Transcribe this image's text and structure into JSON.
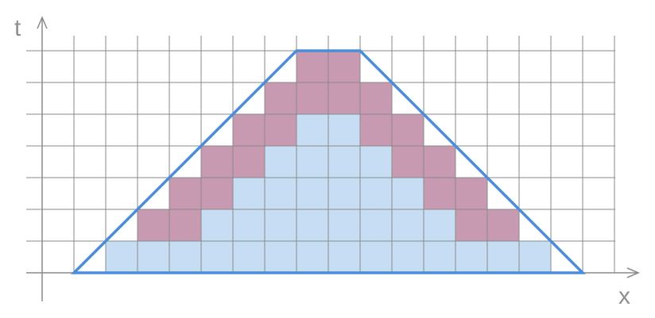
{
  "axes": {
    "x_label": "x",
    "y_label": "t"
  },
  "colors": {
    "background": "#ffffff",
    "grid": "#8a8a8a",
    "axis": "#8a8a8a",
    "label": "#8f8f8f",
    "blue_fill": "#c6ddf3",
    "mauve_fill": "#c89ab2",
    "outline": "#4a8ddb"
  },
  "grid": {
    "columns": 18,
    "rows": 7
  },
  "cells": {
    "blue": [
      [
        2,
        0
      ],
      [
        3,
        0
      ],
      [
        4,
        0
      ],
      [
        5,
        0
      ],
      [
        6,
        0
      ],
      [
        7,
        0
      ],
      [
        8,
        0
      ],
      [
        9,
        0
      ],
      [
        10,
        0
      ],
      [
        11,
        0
      ],
      [
        12,
        0
      ],
      [
        13,
        0
      ],
      [
        14,
        0
      ],
      [
        15,
        0
      ],
      [
        5,
        1
      ],
      [
        6,
        1
      ],
      [
        7,
        1
      ],
      [
        8,
        1
      ],
      [
        9,
        1
      ],
      [
        10,
        1
      ],
      [
        11,
        1
      ],
      [
        12,
        1
      ],
      [
        6,
        2
      ],
      [
        7,
        2
      ],
      [
        8,
        2
      ],
      [
        9,
        2
      ],
      [
        10,
        2
      ],
      [
        11,
        2
      ],
      [
        7,
        3
      ],
      [
        8,
        3
      ],
      [
        9,
        3
      ],
      [
        10,
        3
      ],
      [
        8,
        4
      ],
      [
        9,
        4
      ]
    ],
    "mauve": [
      [
        3,
        1
      ],
      [
        4,
        1
      ],
      [
        13,
        1
      ],
      [
        14,
        1
      ],
      [
        4,
        2
      ],
      [
        5,
        2
      ],
      [
        12,
        2
      ],
      [
        13,
        2
      ],
      [
        5,
        3
      ],
      [
        6,
        3
      ],
      [
        11,
        3
      ],
      [
        12,
        3
      ],
      [
        6,
        4
      ],
      [
        7,
        4
      ],
      [
        10,
        4
      ],
      [
        11,
        4
      ],
      [
        7,
        5
      ],
      [
        8,
        5
      ],
      [
        9,
        5
      ],
      [
        10,
        5
      ],
      [
        8,
        6
      ],
      [
        9,
        6
      ]
    ]
  },
  "outline_polygon": [
    [
      1,
      0
    ],
    [
      8,
      7
    ],
    [
      10,
      7
    ],
    [
      17,
      0
    ]
  ]
}
